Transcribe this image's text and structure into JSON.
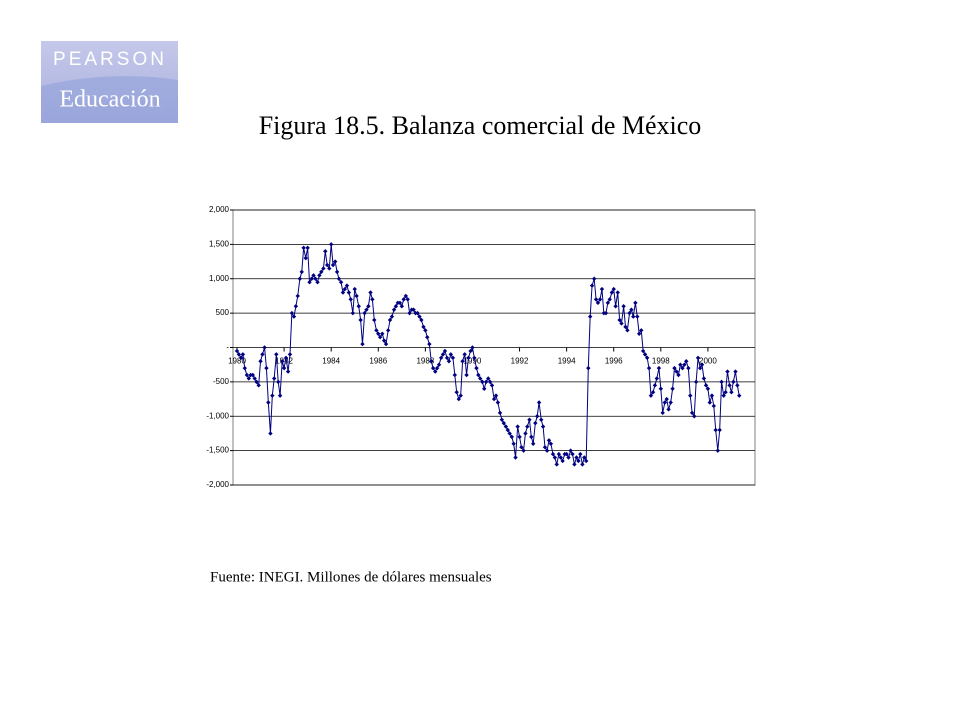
{
  "logo": {
    "brand": "PEARSON",
    "imprint": "Educación"
  },
  "chart_data": {
    "type": "line",
    "title": "Figura 18.5. Balanza comercial de México",
    "source": "Fuente: INEGI. Millones de dólares mensuales",
    "x": [
      1980.0,
      1980.08,
      1980.17,
      1980.25,
      1980.33,
      1980.42,
      1980.5,
      1980.58,
      1980.67,
      1980.75,
      1980.83,
      1980.92,
      1981.0,
      1981.08,
      1981.17,
      1981.25,
      1981.33,
      1981.42,
      1981.5,
      1981.58,
      1981.67,
      1981.75,
      1981.83,
      1981.92,
      1982.0,
      1982.08,
      1982.17,
      1982.25,
      1982.33,
      1982.42,
      1982.5,
      1982.58,
      1982.67,
      1982.75,
      1982.83,
      1982.92,
      1983.0,
      1983.08,
      1983.17,
      1983.25,
      1983.33,
      1983.42,
      1983.5,
      1983.58,
      1983.67,
      1983.75,
      1983.83,
      1983.92,
      1984.0,
      1984.08,
      1984.17,
      1984.25,
      1984.33,
      1984.42,
      1984.5,
      1984.58,
      1984.67,
      1984.75,
      1984.83,
      1984.92,
      1985.0,
      1985.08,
      1985.17,
      1985.25,
      1985.33,
      1985.42,
      1985.5,
      1985.58,
      1985.67,
      1985.75,
      1985.83,
      1985.92,
      1986.0,
      1986.08,
      1986.17,
      1986.25,
      1986.33,
      1986.42,
      1986.5,
      1986.58,
      1986.67,
      1986.75,
      1986.83,
      1986.92,
      1987.0,
      1987.08,
      1987.17,
      1987.25,
      1987.33,
      1987.42,
      1987.5,
      1987.58,
      1987.67,
      1987.75,
      1987.83,
      1987.92,
      1988.0,
      1988.08,
      1988.17,
      1988.25,
      1988.33,
      1988.42,
      1988.5,
      1988.58,
      1988.67,
      1988.75,
      1988.83,
      1988.92,
      1989.0,
      1989.08,
      1989.17,
      1989.25,
      1989.33,
      1989.42,
      1989.5,
      1989.58,
      1989.67,
      1989.75,
      1989.83,
      1989.92,
      1990.0,
      1990.08,
      1990.17,
      1990.25,
      1990.33,
      1990.42,
      1990.5,
      1990.58,
      1990.67,
      1990.75,
      1990.83,
      1990.92,
      1991.0,
      1991.08,
      1991.17,
      1991.25,
      1991.33,
      1991.42,
      1991.5,
      1991.58,
      1991.67,
      1991.75,
      1991.83,
      1991.92,
      1992.0,
      1992.08,
      1992.17,
      1992.25,
      1992.33,
      1992.42,
      1992.5,
      1992.58,
      1992.67,
      1992.75,
      1992.83,
      1992.92,
      1993.0,
      1993.08,
      1993.17,
      1993.25,
      1993.33,
      1993.42,
      1993.5,
      1993.58,
      1993.67,
      1993.75,
      1993.83,
      1993.92,
      1994.0,
      1994.08,
      1994.17,
      1994.25,
      1994.33,
      1994.42,
      1994.5,
      1994.58,
      1994.67,
      1994.75,
      1994.83,
      1994.92,
      1995.0,
      1995.08,
      1995.17,
      1995.25,
      1995.33,
      1995.42,
      1995.5,
      1995.58,
      1995.67,
      1995.75,
      1995.83,
      1995.92,
      1996.0,
      1996.08,
      1996.17,
      1996.25,
      1996.33,
      1996.42,
      1996.5,
      1996.58,
      1996.67,
      1996.75,
      1996.83,
      1996.92,
      1997.0,
      1997.08,
      1997.17,
      1997.25,
      1997.33,
      1997.42,
      1997.5,
      1997.58,
      1997.67,
      1997.75,
      1997.83,
      1997.92,
      1998.0,
      1998.08,
      1998.17,
      1998.25,
      1998.33,
      1998.42,
      1998.5,
      1998.58,
      1998.67,
      1998.75,
      1998.83,
      1998.92,
      1999.0,
      1999.08,
      1999.17,
      1999.25,
      1999.33,
      1999.42,
      1999.5,
      1999.58,
      1999.67,
      1999.75,
      1999.83,
      1999.92,
      2000.0,
      2000.08,
      2000.17,
      2000.25,
      2000.33,
      2000.42,
      2000.5,
      2000.58,
      2000.67,
      2000.75,
      2000.83,
      2000.92,
      2001.0,
      2001.08,
      2001.17,
      2001.25,
      2001.33
    ],
    "series": [
      {
        "color": "#000080",
        "values": [
          -50,
          -100,
          -150,
          -100,
          -300,
          -400,
          -450,
          -400,
          -400,
          -450,
          -500,
          -550,
          -200,
          -100,
          0,
          -300,
          -800,
          -1250,
          -700,
          -450,
          -100,
          -500,
          -700,
          -200,
          -300,
          -150,
          -350,
          -100,
          500,
          450,
          600,
          750,
          1000,
          1100,
          1450,
          1300,
          1450,
          950,
          1000,
          1050,
          1000,
          950,
          1050,
          1100,
          1150,
          1400,
          1200,
          1150,
          1500,
          1200,
          1250,
          1100,
          1000,
          950,
          800,
          850,
          900,
          800,
          700,
          500,
          850,
          750,
          600,
          400,
          50,
          500,
          550,
          600,
          800,
          700,
          400,
          250,
          200,
          150,
          200,
          100,
          50,
          250,
          400,
          450,
          550,
          600,
          650,
          650,
          600,
          700,
          750,
          700,
          500,
          550,
          550,
          500,
          500,
          450,
          400,
          300,
          250,
          150,
          50,
          -200,
          -300,
          -350,
          -300,
          -250,
          -150,
          -100,
          -50,
          -150,
          -200,
          -100,
          -150,
          -400,
          -650,
          -750,
          -700,
          -200,
          -100,
          -400,
          -150,
          -50,
          0,
          -150,
          -300,
          -400,
          -450,
          -500,
          -600,
          -500,
          -450,
          -500,
          -550,
          -750,
          -700,
          -800,
          -950,
          -1050,
          -1100,
          -1150,
          -1200,
          -1250,
          -1300,
          -1400,
          -1600,
          -1150,
          -1300,
          -1450,
          -1500,
          -1250,
          -1150,
          -1050,
          -1300,
          -1400,
          -1100,
          -1000,
          -800,
          -1050,
          -1150,
          -1450,
          -1500,
          -1350,
          -1400,
          -1550,
          -1600,
          -1700,
          -1550,
          -1600,
          -1650,
          -1550,
          -1550,
          -1600,
          -1500,
          -1550,
          -1700,
          -1600,
          -1650,
          -1550,
          -1700,
          -1600,
          -1650,
          -300,
          450,
          900,
          1000,
          700,
          650,
          700,
          850,
          500,
          500,
          650,
          700,
          800,
          850,
          600,
          800,
          400,
          350,
          600,
          300,
          250,
          500,
          550,
          450,
          650,
          450,
          200,
          250,
          -50,
          -100,
          -150,
          -300,
          -700,
          -650,
          -550,
          -450,
          -300,
          -600,
          -950,
          -800,
          -750,
          -900,
          -800,
          -600,
          -300,
          -350,
          -400,
          -250,
          -300,
          -250,
          -200,
          -300,
          -700,
          -950,
          -1000,
          -500,
          -150,
          -300,
          -250,
          -450,
          -550,
          -600,
          -800,
          -700,
          -850,
          -1200,
          -1500,
          -1200,
          -500,
          -700,
          -650,
          -350,
          -550,
          -650,
          -500,
          -350,
          -550,
          -700
        ]
      }
    ],
    "xlim": [
      1979.83,
      2002
    ],
    "xticks": [
      1980,
      1982,
      1984,
      1986,
      1988,
      1990,
      1992,
      1994,
      1996,
      1998,
      2000
    ],
    "ylim": [
      -2000,
      2000
    ],
    "yticks": [
      {
        "value": -2000,
        "label": "-2,000"
      },
      {
        "value": -1500,
        "label": "-1,500"
      },
      {
        "value": -1000,
        "label": "-1,000"
      },
      {
        "value": -500,
        "label": "-500"
      },
      {
        "value": 0,
        "label": "-"
      },
      {
        "value": 500,
        "label": "500"
      },
      {
        "value": 1000,
        "label": "1,000"
      },
      {
        "value": 1500,
        "label": "1,500"
      },
      {
        "value": 2000,
        "label": "2,000"
      }
    ],
    "grid": true
  }
}
